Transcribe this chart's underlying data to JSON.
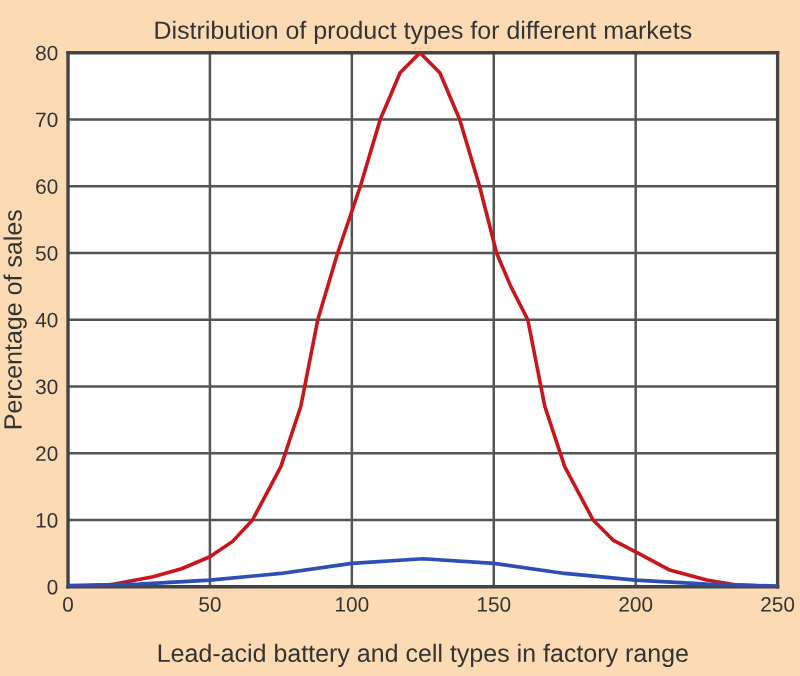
{
  "chart_data": {
    "type": "line",
    "title": "Distribution of product types for different markets",
    "xlabel": "Lead-acid battery and cell types in factory range",
    "ylabel": "Percentage of sales",
    "series": [
      {
        "color": "#c8161d",
        "x": [
          0,
          15,
          30,
          40,
          50,
          58,
          65,
          70,
          75,
          82,
          88,
          95,
          103,
          110,
          117,
          124,
          131,
          138,
          145,
          151,
          156,
          162,
          168,
          175,
          180,
          185,
          192,
          201,
          212,
          225,
          235,
          250
        ],
        "values": [
          0,
          0.3,
          1.5,
          2.7,
          4.5,
          6.8,
          10,
          14,
          18,
          27,
          40,
          50,
          60,
          70,
          77,
          80,
          77,
          70,
          60,
          50,
          45,
          40,
          27,
          18,
          14,
          10,
          7,
          5,
          2.5,
          1,
          0.3,
          0
        ]
      },
      {
        "color": "#2b4fb5",
        "x": [
          0,
          25,
          50,
          75,
          100,
          125,
          150,
          175,
          200,
          225,
          250
        ],
        "values": [
          0.2,
          0.4,
          1,
          2,
          3.5,
          4.2,
          3.5,
          2,
          1,
          0.4,
          0.1
        ]
      }
    ],
    "xlim": [
      0,
      250
    ],
    "ylim": [
      0,
      80
    ],
    "xticks": [
      0,
      50,
      100,
      150,
      200,
      250
    ],
    "yticks": [
      0,
      10,
      20,
      30,
      40,
      50,
      60,
      70,
      80
    ],
    "grid": true,
    "marker": "none",
    "line_style": "solid"
  }
}
